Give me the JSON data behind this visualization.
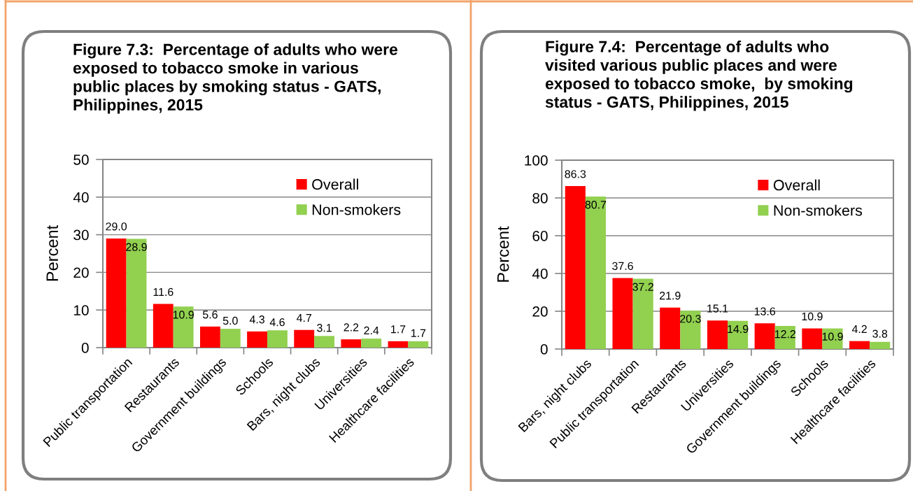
{
  "chart_data": [
    {
      "type": "bar",
      "title": "Figure 7.3:  Percentage of adults who were\nexposed to tobacco smoke in various\npublic places by smoking status - GATS,\nPhilippines, 2015",
      "ylabel": "Percent",
      "categories": [
        "Public transportation",
        "Restaurants",
        "Government buildings",
        "Schools",
        "Bars, night clubs",
        "Universities",
        "Healthcare facilities"
      ],
      "series": [
        {
          "name": "Overall",
          "color": "#ff0000",
          "values": [
            29.0,
            11.6,
            5.6,
            4.3,
            4.7,
            2.2,
            1.7
          ],
          "value_labels": [
            "29.0",
            "11.6",
            "5.6",
            "4.3",
            "4.7",
            "2.2",
            "1.7"
          ]
        },
        {
          "name": "Non-smokers",
          "color": "#92d050",
          "values": [
            28.9,
            10.9,
            5.0,
            4.6,
            3.1,
            2.4,
            1.7
          ],
          "value_labels": [
            "28.9",
            "10.9",
            "5.0",
            "4.6",
            "3.1",
            "2.4",
            "1.7"
          ]
        }
      ],
      "ylim": [
        0,
        50
      ],
      "yticks": [
        0,
        10,
        20,
        30,
        40,
        50
      ],
      "grid": "y",
      "legend": "top right"
    },
    {
      "type": "bar",
      "title": "Figure 7.4:  Percentage of adults who\nvisited various public places and were\nexposed to tobacco smoke,  by smoking\nstatus - GATS, Philippines, 2015",
      "ylabel": "Percent",
      "categories": [
        "Bars, night clubs",
        "Public transportation",
        "Restaurants",
        "Universities",
        "Government buildings",
        "Schools",
        "Healthcare facilities"
      ],
      "series": [
        {
          "name": "Overall",
          "color": "#ff0000",
          "values": [
            86.3,
            37.6,
            21.9,
            15.1,
            13.6,
            10.9,
            4.2
          ],
          "value_labels": [
            "86.3",
            "37.6",
            "21.9",
            "15.1",
            "13.6",
            "10.9",
            "4.2"
          ]
        },
        {
          "name": "Non-smokers",
          "color": "#92d050",
          "values": [
            80.7,
            37.2,
            20.3,
            14.9,
            12.2,
            10.9,
            3.8
          ],
          "value_labels": [
            "80.7",
            "37.2",
            "20.3",
            "14.9",
            "12.2",
            "10.9",
            "3.8"
          ]
        }
      ],
      "ylim": [
        0,
        100
      ],
      "yticks": [
        0,
        20,
        40,
        60,
        80,
        100
      ],
      "grid": "y",
      "legend": "top right"
    }
  ]
}
